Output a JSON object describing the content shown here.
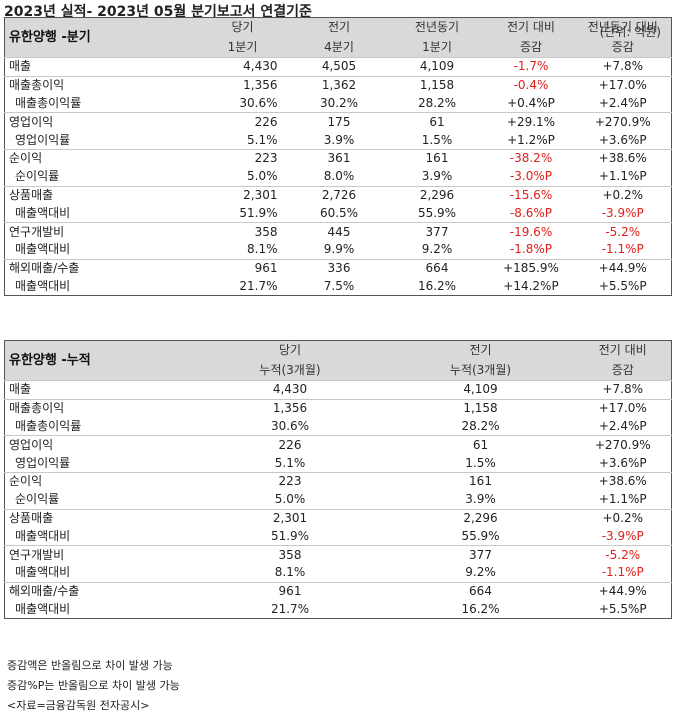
{
  "title": "2023년 실적- 2023년 05월 분기보고서 연결기준",
  "unit": "(단위: 억원)",
  "colors": {
    "negative": "#e0201a",
    "header_bg": "#d9d9d9"
  },
  "quarterly": {
    "label": "유한양행 -분기",
    "headers": [
      [
        "당기",
        "1분기"
      ],
      [
        "전기",
        "4분기"
      ],
      [
        "전년동기",
        "1분기"
      ],
      [
        "전기 대비",
        "증감"
      ],
      [
        "전년동기 대비",
        "증감"
      ]
    ],
    "rows": [
      {
        "name": "매출",
        "sub": false,
        "values": [
          "4,430",
          "4,505",
          "4,109"
        ],
        "d1": "-1.7%",
        "d1_neg": true,
        "d2": "+7.8%",
        "d2_neg": false
      },
      {
        "name": "매출총이익",
        "sub": false,
        "values": [
          "1,356",
          "1,362",
          "1,158"
        ],
        "d1": "-0.4%",
        "d1_neg": true,
        "d2": "+17.0%",
        "d2_neg": false
      },
      {
        "name": "매출총이익률",
        "sub": true,
        "values": [
          "30.6%",
          "30.2%",
          "28.2%"
        ],
        "d1": "+0.4%P",
        "d1_neg": false,
        "d2": "+2.4%P",
        "d2_neg": false
      },
      {
        "name": "영업이익",
        "sub": false,
        "values": [
          "226",
          "175",
          "61"
        ],
        "d1": "+29.1%",
        "d1_neg": false,
        "d2": "+270.9%",
        "d2_neg": false
      },
      {
        "name": "영업이익률",
        "sub": true,
        "values": [
          "5.1%",
          "3.9%",
          "1.5%"
        ],
        "d1": "+1.2%P",
        "d1_neg": false,
        "d2": "+3.6%P",
        "d2_neg": false
      },
      {
        "name": "순이익",
        "sub": false,
        "values": [
          "223",
          "361",
          "161"
        ],
        "d1": "-38.2%",
        "d1_neg": true,
        "d2": "+38.6%",
        "d2_neg": false
      },
      {
        "name": "순이익률",
        "sub": true,
        "values": [
          "5.0%",
          "8.0%",
          "3.9%"
        ],
        "d1": "-3.0%P",
        "d1_neg": true,
        "d2": "+1.1%P",
        "d2_neg": false
      },
      {
        "name": "상품매출",
        "sub": false,
        "values": [
          "2,301",
          "2,726",
          "2,296"
        ],
        "d1": "-15.6%",
        "d1_neg": true,
        "d2": "+0.2%",
        "d2_neg": false
      },
      {
        "name": "매출액대비",
        "sub": true,
        "values": [
          "51.9%",
          "60.5%",
          "55.9%"
        ],
        "d1": "-8.6%P",
        "d1_neg": true,
        "d2": "-3.9%P",
        "d2_neg": true
      },
      {
        "name": "연구개발비",
        "sub": false,
        "values": [
          "358",
          "445",
          "377"
        ],
        "d1": "-19.6%",
        "d1_neg": true,
        "d2": "-5.2%",
        "d2_neg": true
      },
      {
        "name": "매출액대비",
        "sub": true,
        "values": [
          "8.1%",
          "9.9%",
          "9.2%"
        ],
        "d1": "-1.8%P",
        "d1_neg": true,
        "d2": "-1.1%P",
        "d2_neg": true
      },
      {
        "name": "해외매출/수출",
        "sub": false,
        "values": [
          "961",
          "336",
          "664"
        ],
        "d1": "+185.9%",
        "d1_neg": false,
        "d2": "+44.9%",
        "d2_neg": false
      },
      {
        "name": "매출액대비",
        "sub": true,
        "values": [
          "21.7%",
          "7.5%",
          "16.2%"
        ],
        "d1": "+14.2%P",
        "d1_neg": false,
        "d2": "+5.5%P",
        "d2_neg": false
      }
    ]
  },
  "cumulative": {
    "label": "유한양행 -누적",
    "headers": [
      [
        "당기",
        "누적(3개월)"
      ],
      [
        "전기",
        "누적(3개월)"
      ],
      [
        "전기 대비",
        "증감"
      ]
    ],
    "rows": [
      {
        "name": "매출",
        "sub": false,
        "values": [
          "4,430",
          "4,109"
        ],
        "d": "+7.8%",
        "d_neg": false
      },
      {
        "name": "매출총이익",
        "sub": false,
        "values": [
          "1,356",
          "1,158"
        ],
        "d": "+17.0%",
        "d_neg": false
      },
      {
        "name": "매출총이익률",
        "sub": true,
        "values": [
          "30.6%",
          "28.2%"
        ],
        "d": "+2.4%P",
        "d_neg": false
      },
      {
        "name": "영업이익",
        "sub": false,
        "values": [
          "226",
          "61"
        ],
        "d": "+270.9%",
        "d_neg": false
      },
      {
        "name": "영업이익률",
        "sub": true,
        "values": [
          "5.1%",
          "1.5%"
        ],
        "d": "+3.6%P",
        "d_neg": false
      },
      {
        "name": "순이익",
        "sub": false,
        "values": [
          "223",
          "161"
        ],
        "d": "+38.6%",
        "d_neg": false
      },
      {
        "name": "순이익률",
        "sub": true,
        "values": [
          "5.0%",
          "3.9%"
        ],
        "d": "+1.1%P",
        "d_neg": false
      },
      {
        "name": "상품매출",
        "sub": false,
        "values": [
          "2,301",
          "2,296"
        ],
        "d": "+0.2%",
        "d_neg": false
      },
      {
        "name": "매출액대비",
        "sub": true,
        "values": [
          "51.9%",
          "55.9%"
        ],
        "d": "-3.9%P",
        "d_neg": true
      },
      {
        "name": "연구개발비",
        "sub": false,
        "values": [
          "358",
          "377"
        ],
        "d": "-5.2%",
        "d_neg": true
      },
      {
        "name": "매출액대비",
        "sub": true,
        "values": [
          "8.1%",
          "9.2%"
        ],
        "d": "-1.1%P",
        "d_neg": true
      },
      {
        "name": "해외매출/수출",
        "sub": false,
        "values": [
          "961",
          "664"
        ],
        "d": "+44.9%",
        "d_neg": false
      },
      {
        "name": "매출액대비",
        "sub": true,
        "values": [
          "21.7%",
          "16.2%"
        ],
        "d": "+5.5%P",
        "d_neg": false
      }
    ]
  },
  "notes": [
    "증감액은 반올림으로 차이 발생 가능",
    "증감%P는 반올림으로 차이 발생 가능",
    "<자료=금융감독원 전자공시>"
  ]
}
